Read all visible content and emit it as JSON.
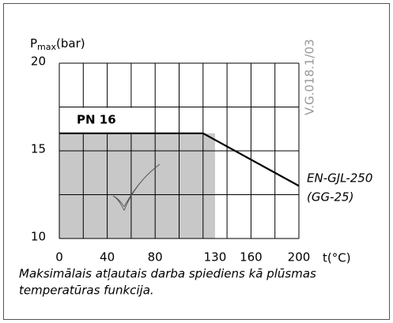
{
  "chart_data": {
    "type": "line",
    "ylabel_main": "P",
    "ylabel_sub": "max",
    "ylabel_unit": "(bar)",
    "xlabel": "t(°C)",
    "xlim": [
      0,
      200
    ],
    "ylim": [
      10,
      20
    ],
    "xticks": [
      0,
      40,
      80,
      130,
      160,
      200
    ],
    "yticks": [
      10,
      15,
      20
    ],
    "xgrid": [
      0,
      20,
      40,
      60,
      80,
      100,
      120,
      140,
      160,
      180,
      200
    ],
    "ygrid": [
      10,
      12.5,
      15,
      17.5,
      20
    ],
    "grid": true,
    "x": [
      0,
      120,
      200
    ],
    "series": [
      {
        "name": "EN-GJL-250",
        "name2": "(GG-25)",
        "color": "#000000",
        "values": [
          16,
          16,
          13
        ]
      }
    ],
    "shaded_region": {
      "x": [
        0,
        130
      ],
      "y": [
        10,
        16
      ],
      "color": "#c8c8c8"
    },
    "annotation": "PN 16",
    "code": "V.G.018.1/03",
    "caption_line1": "Maksimālais atļautais darba spiediens kā plūsmas",
    "caption_line2": "temperatūras funkcija."
  }
}
